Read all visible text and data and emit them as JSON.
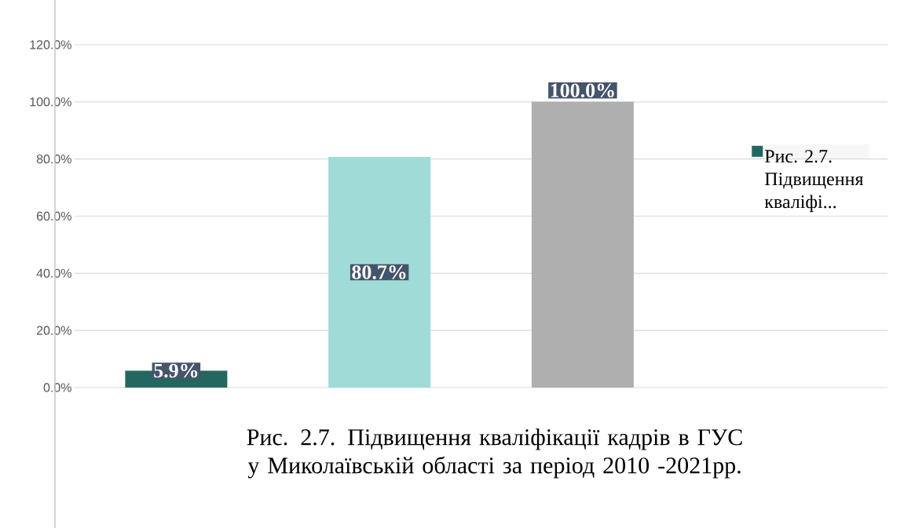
{
  "chart_data": {
    "type": "bar",
    "title": "Рис. 2.7. Підвищення кваліфікації кадрів в ГУС у Миколаївській області за період 2010 -2021рр.",
    "categories": [
      null,
      null,
      null
    ],
    "series": [
      {
        "name": "Рис. 2.7. Підвищення кваліфі...",
        "colors": [
          "#246760",
          "#a0dbd8",
          "#afafaf"
        ],
        "values": [
          5.9,
          80.7,
          100.0
        ],
        "value_labels": [
          "5.9%",
          "80.7%",
          "100.0%"
        ]
      }
    ],
    "ylim": [
      0,
      120
    ],
    "yticks": [
      {
        "value": 0,
        "label": "0.0%"
      },
      {
        "value": 20,
        "label": "20.0%"
      },
      {
        "value": 40,
        "label": "40.0%"
      },
      {
        "value": 60,
        "label": "60.0%"
      },
      {
        "value": 80,
        "label": "80.0%"
      },
      {
        "value": 100,
        "label": "100.0%"
      },
      {
        "value": 120,
        "label": "120.0%"
      }
    ],
    "grid": "y",
    "legend": "right"
  }
}
